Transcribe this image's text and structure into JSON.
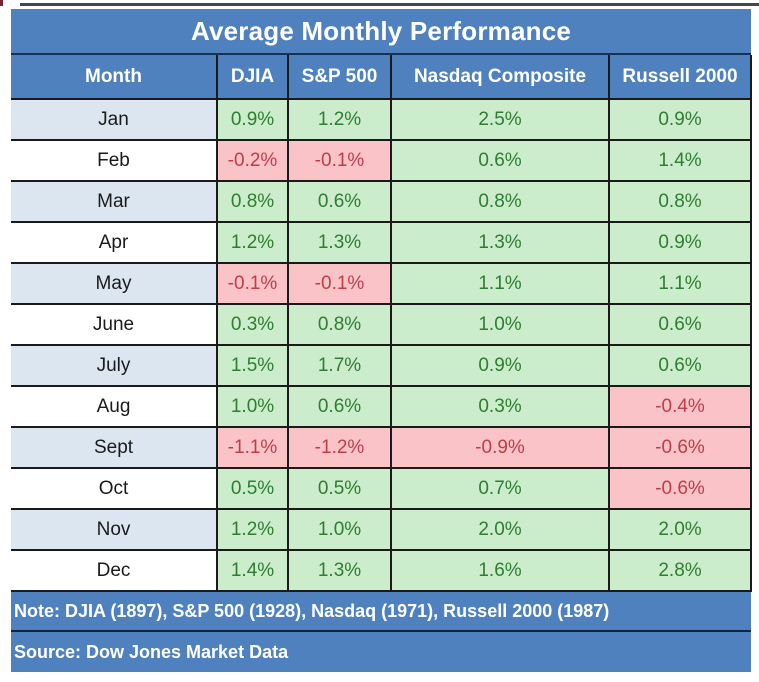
{
  "title": "Average Monthly Performance",
  "chart_data": {
    "type": "table",
    "title": "Average Monthly Performance",
    "unit": "%",
    "columns": [
      "Month",
      "DJIA",
      "S&P 500",
      "Nasdaq Composite",
      "Russell 2000"
    ],
    "months": [
      "Jan",
      "Feb",
      "Mar",
      "Apr",
      "May",
      "June",
      "July",
      "Aug",
      "Sept",
      "Oct",
      "Nov",
      "Dec"
    ],
    "series": [
      {
        "name": "DJIA",
        "values": [
          0.9,
          -0.2,
          0.8,
          1.2,
          -0.1,
          0.3,
          1.5,
          1.0,
          -1.1,
          0.5,
          1.2,
          1.4
        ]
      },
      {
        "name": "S&P 500",
        "values": [
          1.2,
          -0.1,
          0.6,
          1.3,
          -0.1,
          0.8,
          1.7,
          0.6,
          -1.2,
          0.5,
          1.0,
          1.3
        ]
      },
      {
        "name": "Nasdaq Composite",
        "values": [
          2.5,
          0.6,
          0.8,
          1.3,
          1.1,
          1.0,
          0.9,
          0.3,
          -0.9,
          0.7,
          2.0,
          1.6
        ]
      },
      {
        "name": "Russell 2000",
        "values": [
          0.9,
          1.4,
          0.8,
          0.9,
          1.1,
          0.6,
          0.6,
          -0.4,
          -0.6,
          -0.6,
          2.0,
          2.8
        ]
      }
    ],
    "positive_color_bg": "#cbedcb",
    "positive_color_text": "#2e7d32",
    "negative_color_bg": "#f9c3c7",
    "negative_color_text": "#be3e48",
    "header_color": "#4e81bd",
    "alt_row_color": "#dce6f1"
  },
  "note": "Note: DJIA (1897), S&P 500 (1928), Nasdaq (1971), Russell 2000 (1987)",
  "source": "Source: Dow Jones Market Data"
}
